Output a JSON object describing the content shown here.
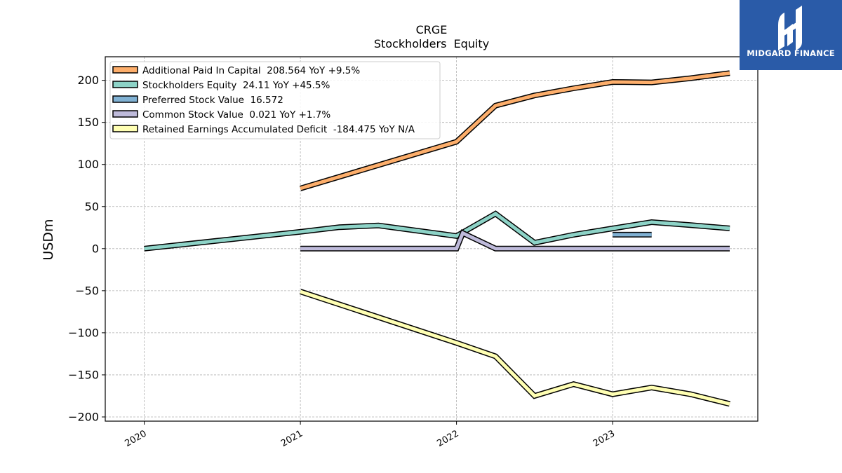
{
  "logo": {
    "text": "MIDGARD FINANCE",
    "color": "#2a5ba8"
  },
  "chart_data": {
    "type": "line",
    "title": "CRGE",
    "subtitle": "Stockholders  Equity",
    "ylabel": "USDm",
    "xlabel": "",
    "ylim": [
      -205,
      228
    ],
    "xlim": [
      2019.75,
      2023.93
    ],
    "yticks": [
      200,
      150,
      100,
      50,
      0,
      -50,
      -100,
      -150,
      -200
    ],
    "ytick_labels": [
      "200",
      "150",
      "100",
      "50",
      "0",
      "−50",
      "−100",
      "−150",
      "−200"
    ],
    "xticks": [
      2020,
      2021,
      2022,
      2023
    ],
    "xtick_labels": [
      "2020",
      "2021",
      "2022",
      "2023"
    ],
    "grid": true,
    "legend_position": "top-left",
    "series": [
      {
        "name": "Additional Paid In Capital",
        "legend": "Additional Paid In Capital  208.564 YoY +9.5%",
        "color": "#fdae6b",
        "points": [
          [
            2021.0,
            71.5
          ],
          [
            2022.0,
            127.0
          ],
          [
            2022.25,
            170.0
          ],
          [
            2022.5,
            182.0
          ],
          [
            2022.75,
            190.5
          ],
          [
            2023.0,
            198.0
          ],
          [
            2023.25,
            197.5
          ],
          [
            2023.5,
            202.5
          ],
          [
            2023.75,
            208.6
          ]
        ]
      },
      {
        "name": "Stockholders Equity",
        "legend": "Stockholders Equity  24.11 YoY +45.5%",
        "color": "#8dd3c7",
        "points": [
          [
            2020.0,
            0.0
          ],
          [
            2021.0,
            20.0
          ],
          [
            2021.25,
            25.5
          ],
          [
            2021.5,
            27.5
          ],
          [
            2022.0,
            15.0
          ],
          [
            2022.25,
            41.5
          ],
          [
            2022.5,
            7.0
          ],
          [
            2022.75,
            16.5
          ],
          [
            2023.0,
            24.0
          ],
          [
            2023.25,
            31.5
          ],
          [
            2023.5,
            28.0
          ],
          [
            2023.75,
            24.1
          ]
        ]
      },
      {
        "name": "Preferred Stock Value",
        "legend": "Preferred Stock Value  16.572",
        "color": "#80b1d3",
        "points": [
          [
            2023.0,
            16.6
          ],
          [
            2023.25,
            16.6
          ]
        ]
      },
      {
        "name": "Common Stock Value",
        "legend": "Common Stock Value  0.021 YoY +1.7%",
        "color": "#bebada",
        "points": [
          [
            2021.0,
            0.0
          ],
          [
            2022.0,
            0.0
          ],
          [
            2022.04,
            18.5
          ],
          [
            2022.25,
            0.0
          ],
          [
            2022.5,
            0.0
          ],
          [
            2023.0,
            0.0
          ],
          [
            2023.75,
            0.0
          ]
        ]
      },
      {
        "name": "Retained Earnings Accumulated Deficit",
        "legend": "Retained Earnings Accumulated Deficit  -184.475 YoY N/A",
        "color": "#ffffb3",
        "points": [
          [
            2021.0,
            -51.0
          ],
          [
            2022.0,
            -112.0
          ],
          [
            2022.25,
            -128.0
          ],
          [
            2022.5,
            -175.0
          ],
          [
            2022.75,
            -161.0
          ],
          [
            2023.0,
            -173.0
          ],
          [
            2023.25,
            -165.0
          ],
          [
            2023.5,
            -173.0
          ],
          [
            2023.75,
            -184.5
          ]
        ]
      }
    ]
  }
}
